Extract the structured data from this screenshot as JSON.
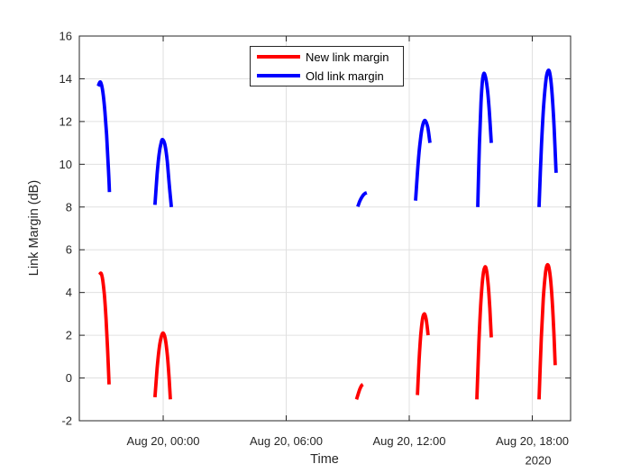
{
  "figure": {
    "background": "#ffffff"
  },
  "chart_data": {
    "type": "line",
    "title": "",
    "xlabel": "Time",
    "xlabel_secondary": "2020",
    "ylabel": "Link Margin (dB)",
    "ylim": [
      -2,
      16
    ],
    "yticks": [
      -2,
      0,
      2,
      4,
      6,
      8,
      10,
      12,
      14,
      16
    ],
    "xlim_hours": [
      -4.09,
      19.87
    ],
    "xticks": [
      {
        "hours": 0,
        "label": "Aug 20, 00:00"
      },
      {
        "hours": 6,
        "label": "Aug 20, 06:00"
      },
      {
        "hours": 12,
        "label": "Aug 20, 12:00"
      },
      {
        "hours": 18,
        "label": "Aug 20, 18:00"
      }
    ],
    "grid": true,
    "legend": {
      "position": "inside-top-center"
    },
    "colors": {
      "axis": "#262626",
      "grid": "#e0e0e0",
      "tick_label": "#262626",
      "new_margin": "#ff0000",
      "old_margin": "#0000ff"
    },
    "series": [
      {
        "name": "New link margin",
        "color": "#ff0000",
        "segments": [
          [
            [
              -3.1,
              4.82
            ],
            [
              -3.03,
              4.9
            ],
            [
              -2.95,
              4.6
            ],
            [
              -2.87,
              3.9
            ],
            [
              -2.79,
              2.8
            ],
            [
              -2.71,
              1.3
            ],
            [
              -2.64,
              -0.3
            ]
          ],
          [
            [
              -0.4,
              -0.9
            ],
            [
              -0.3,
              0.41
            ],
            [
              -0.2,
              1.35
            ],
            [
              -0.1,
              1.91
            ],
            [
              0.0,
              2.1
            ],
            [
              0.1,
              1.85
            ],
            [
              0.2,
              1.09
            ],
            [
              0.28,
              0.12
            ],
            [
              0.35,
              -1.0
            ]
          ],
          [
            [
              9.43,
              -1.0
            ],
            [
              9.52,
              -0.72
            ],
            [
              9.6,
              -0.5
            ],
            [
              9.67,
              -0.36
            ],
            [
              9.74,
              -0.3
            ]
          ],
          [
            [
              12.4,
              -0.8
            ],
            [
              12.48,
              0.82
            ],
            [
              12.56,
              1.99
            ],
            [
              12.65,
              2.78
            ],
            [
              12.73,
              3.0
            ],
            [
              12.8,
              2.86
            ],
            [
              12.86,
              2.53
            ],
            [
              12.92,
              2.0
            ]
          ],
          [
            [
              15.3,
              -1.0
            ],
            [
              15.4,
              1.7
            ],
            [
              15.5,
              3.65
            ],
            [
              15.6,
              4.81
            ],
            [
              15.7,
              5.2
            ],
            [
              15.78,
              4.97
            ],
            [
              15.86,
              4.26
            ],
            [
              15.93,
              3.26
            ],
            [
              16.0,
              1.9
            ]
          ],
          [
            [
              18.33,
              -1.0
            ],
            [
              18.44,
              1.87
            ],
            [
              18.54,
              3.72
            ],
            [
              18.65,
              4.94
            ],
            [
              18.75,
              5.3
            ],
            [
              18.85,
              4.96
            ],
            [
              18.95,
              3.93
            ],
            [
              19.04,
              2.42
            ],
            [
              19.12,
              0.6
            ]
          ]
        ]
      },
      {
        "name": "Old link margin",
        "color": "#0000ff",
        "segments": [
          [
            [
              -3.17,
              13.65
            ],
            [
              -3.08,
              13.85
            ],
            [
              -3.0,
              13.69
            ],
            [
              -2.92,
              13.22
            ],
            [
              -2.84,
              12.45
            ],
            [
              -2.76,
              11.36
            ],
            [
              -2.69,
              10.15
            ],
            [
              -2.62,
              8.7
            ]
          ],
          [
            [
              -0.4,
              8.1
            ],
            [
              -0.3,
              9.5
            ],
            [
              -0.2,
              10.47
            ],
            [
              -0.1,
              11.01
            ],
            [
              -0.02,
              11.15
            ],
            [
              0.1,
              10.85
            ],
            [
              0.2,
              10.13
            ],
            [
              0.3,
              8.99
            ],
            [
              0.4,
              8.0
            ]
          ],
          [
            [
              9.49,
              8.02
            ],
            [
              9.58,
              8.25
            ],
            [
              9.67,
              8.43
            ],
            [
              9.76,
              8.56
            ],
            [
              9.85,
              8.64
            ],
            [
              9.93,
              8.66
            ]
          ],
          [
            [
              12.31,
              8.3
            ],
            [
              12.43,
              10.0
            ],
            [
              12.54,
              11.11
            ],
            [
              12.65,
              11.8
            ],
            [
              12.77,
              12.05
            ],
            [
              12.9,
              11.74
            ],
            [
              13.01,
              11.0
            ]
          ],
          [
            [
              15.34,
              8.0
            ],
            [
              15.42,
              10.9
            ],
            [
              15.5,
              12.89
            ],
            [
              15.57,
              13.91
            ],
            [
              15.64,
              14.25
            ],
            [
              15.73,
              14.05
            ],
            [
              15.82,
              13.44
            ],
            [
              15.91,
              12.43
            ],
            [
              16.0,
              11.0
            ]
          ],
          [
            [
              18.33,
              8.0
            ],
            [
              18.45,
              10.9
            ],
            [
              18.56,
              12.8
            ],
            [
              18.68,
              14.03
            ],
            [
              18.79,
              14.4
            ],
            [
              18.88,
              14.12
            ],
            [
              18.97,
              13.27
            ],
            [
              19.07,
              11.65
            ],
            [
              19.16,
              9.6
            ]
          ]
        ]
      }
    ]
  }
}
